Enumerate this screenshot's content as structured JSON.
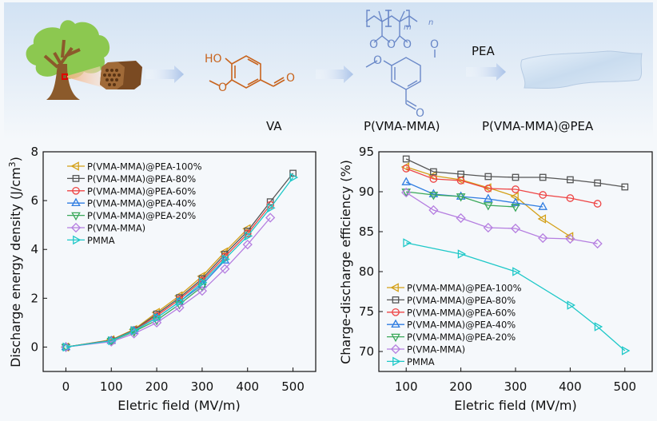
{
  "scheme": {
    "labels": {
      "va": "VA",
      "polymer": "P(VMA-MMA)",
      "reagent": "PEA",
      "product": "P(VMA-MMA)@PEA"
    },
    "va_atoms": {
      "ho": "HO",
      "o": "O"
    },
    "polymer_atoms": {
      "m": "m",
      "n": "n"
    },
    "colors": {
      "va": "#c8641e",
      "polymer": "#6a88c8",
      "arrow": "#a9c2e8",
      "tree_leaf": "#8cc850",
      "tree_trunk": "#8b5a2b"
    }
  },
  "chart_data": [
    {
      "type": "line",
      "title": "",
      "xlabel": "Eletric field (MV/m)",
      "ylabel": "Discharge energy density (J/cm³)",
      "ylabel_main": "Discharge energy density (J/cm",
      "ylabel_sup": "3",
      "ylabel_end": ")",
      "xlim": [
        -50,
        550
      ],
      "ylim": [
        -1,
        8
      ],
      "xticks": [
        0,
        100,
        200,
        300,
        400,
        500
      ],
      "yticks": [
        0,
        2,
        4,
        6,
        8
      ],
      "grid": false,
      "legend_position": "top-left",
      "series": [
        {
          "name": "P(VMA-MMA)@PEA-100%",
          "color": "#d4a017",
          "marker": "triangle-left",
          "x": [
            0,
            100,
            150,
            200,
            250,
            300,
            350,
            400
          ],
          "y": [
            0,
            0.3,
            0.72,
            1.42,
            2.1,
            2.9,
            3.9,
            4.85
          ]
        },
        {
          "name": "P(VMA-MMA)@PEA-80%",
          "color": "#555555",
          "marker": "square",
          "x": [
            0,
            100,
            150,
            200,
            250,
            300,
            350,
            400,
            450,
            500
          ],
          "y": [
            0,
            0.28,
            0.7,
            1.35,
            2.02,
            2.8,
            3.8,
            4.75,
            5.95,
            7.12
          ]
        },
        {
          "name": "P(VMA-MMA)@PEA-60%",
          "color": "#ee4444",
          "marker": "circle",
          "x": [
            0,
            100,
            150,
            200,
            250,
            300,
            350,
            400,
            450
          ],
          "y": [
            0,
            0.27,
            0.68,
            1.28,
            1.95,
            2.72,
            3.7,
            4.65,
            5.82
          ]
        },
        {
          "name": "P(VMA-MMA)@PEA-40%",
          "color": "#2f7de1",
          "marker": "triangle-up",
          "x": [
            0,
            100,
            150,
            200,
            250,
            300,
            350
          ],
          "y": [
            0,
            0.26,
            0.66,
            1.2,
            1.85,
            2.55,
            3.55
          ]
        },
        {
          "name": "P(VMA-MMA)@PEA-20%",
          "color": "#3aa85a",
          "marker": "triangle-down",
          "x": [
            0,
            100,
            150,
            200,
            250,
            300
          ],
          "y": [
            0,
            0.25,
            0.63,
            1.1,
            1.75,
            2.48
          ]
        },
        {
          "name": "P(VMA-MMA)",
          "color": "#b57ee0",
          "marker": "diamond",
          "x": [
            0,
            100,
            150,
            200,
            250,
            300,
            350,
            400,
            450
          ],
          "y": [
            0,
            0.22,
            0.55,
            1.0,
            1.62,
            2.3,
            3.2,
            4.2,
            5.3
          ]
        },
        {
          "name": "PMMA",
          "color": "#1ec8c8",
          "marker": "triangle-right",
          "x": [
            0,
            100,
            150,
            200,
            250,
            300,
            350,
            400,
            450,
            500
          ],
          "y": [
            0,
            0.26,
            0.67,
            1.2,
            1.85,
            2.65,
            3.6,
            4.55,
            5.7,
            6.95
          ]
        }
      ]
    },
    {
      "type": "line",
      "title": "",
      "xlabel": "Eletric field (MV/m)",
      "ylabel": "Charge-discharge efficiency (%)",
      "xlim": [
        50,
        550
      ],
      "ylim": [
        67.5,
        95
      ],
      "xticks": [
        100,
        200,
        300,
        400,
        500
      ],
      "yticks": [
        70,
        75,
        80,
        85,
        90,
        95
      ],
      "grid": false,
      "legend_position": "bottom-left",
      "series": [
        {
          "name": "P(VMA-MMA)@PEA-100%",
          "color": "#d4a017",
          "marker": "triangle-left",
          "x": [
            100,
            150,
            200,
            250,
            300,
            350,
            400
          ],
          "y": [
            93.1,
            92.0,
            91.5,
            90.5,
            89.4,
            86.6,
            84.4
          ]
        },
        {
          "name": "P(VMA-MMA)@PEA-80%",
          "color": "#555555",
          "marker": "square",
          "x": [
            100,
            150,
            200,
            250,
            300,
            350,
            400,
            450,
            500
          ],
          "y": [
            94.1,
            92.5,
            92.2,
            91.9,
            91.8,
            91.8,
            91.5,
            91.1,
            90.6
          ]
        },
        {
          "name": "P(VMA-MMA)@PEA-60%",
          "color": "#ee4444",
          "marker": "circle",
          "x": [
            100,
            150,
            200,
            250,
            300,
            350,
            400,
            450
          ],
          "y": [
            92.9,
            91.6,
            91.4,
            90.4,
            90.3,
            89.6,
            89.2,
            88.5
          ]
        },
        {
          "name": "P(VMA-MMA)@PEA-40%",
          "color": "#2f7de1",
          "marker": "triangle-up",
          "x": [
            100,
            150,
            200,
            250,
            300,
            350
          ],
          "y": [
            91.2,
            89.7,
            89.4,
            89.1,
            88.6,
            88.1
          ]
        },
        {
          "name": "P(VMA-MMA)@PEA-20%",
          "color": "#3aa85a",
          "marker": "triangle-down",
          "x": [
            100,
            150,
            200,
            250,
            300
          ],
          "y": [
            90.0,
            89.6,
            89.4,
            88.3,
            88.1
          ]
        },
        {
          "name": "P(VMA-MMA)",
          "color": "#b57ee0",
          "marker": "diamond",
          "x": [
            100,
            150,
            200,
            250,
            300,
            350,
            400,
            450
          ],
          "y": [
            89.9,
            87.7,
            86.7,
            85.5,
            85.4,
            84.2,
            84.1,
            83.5
          ]
        },
        {
          "name": "PMMA",
          "color": "#1ec8c8",
          "marker": "triangle-right",
          "x": [
            100,
            200,
            300,
            400,
            450,
            500
          ],
          "y": [
            83.6,
            82.2,
            80.0,
            75.8,
            73.1,
            70.1
          ]
        }
      ]
    }
  ]
}
